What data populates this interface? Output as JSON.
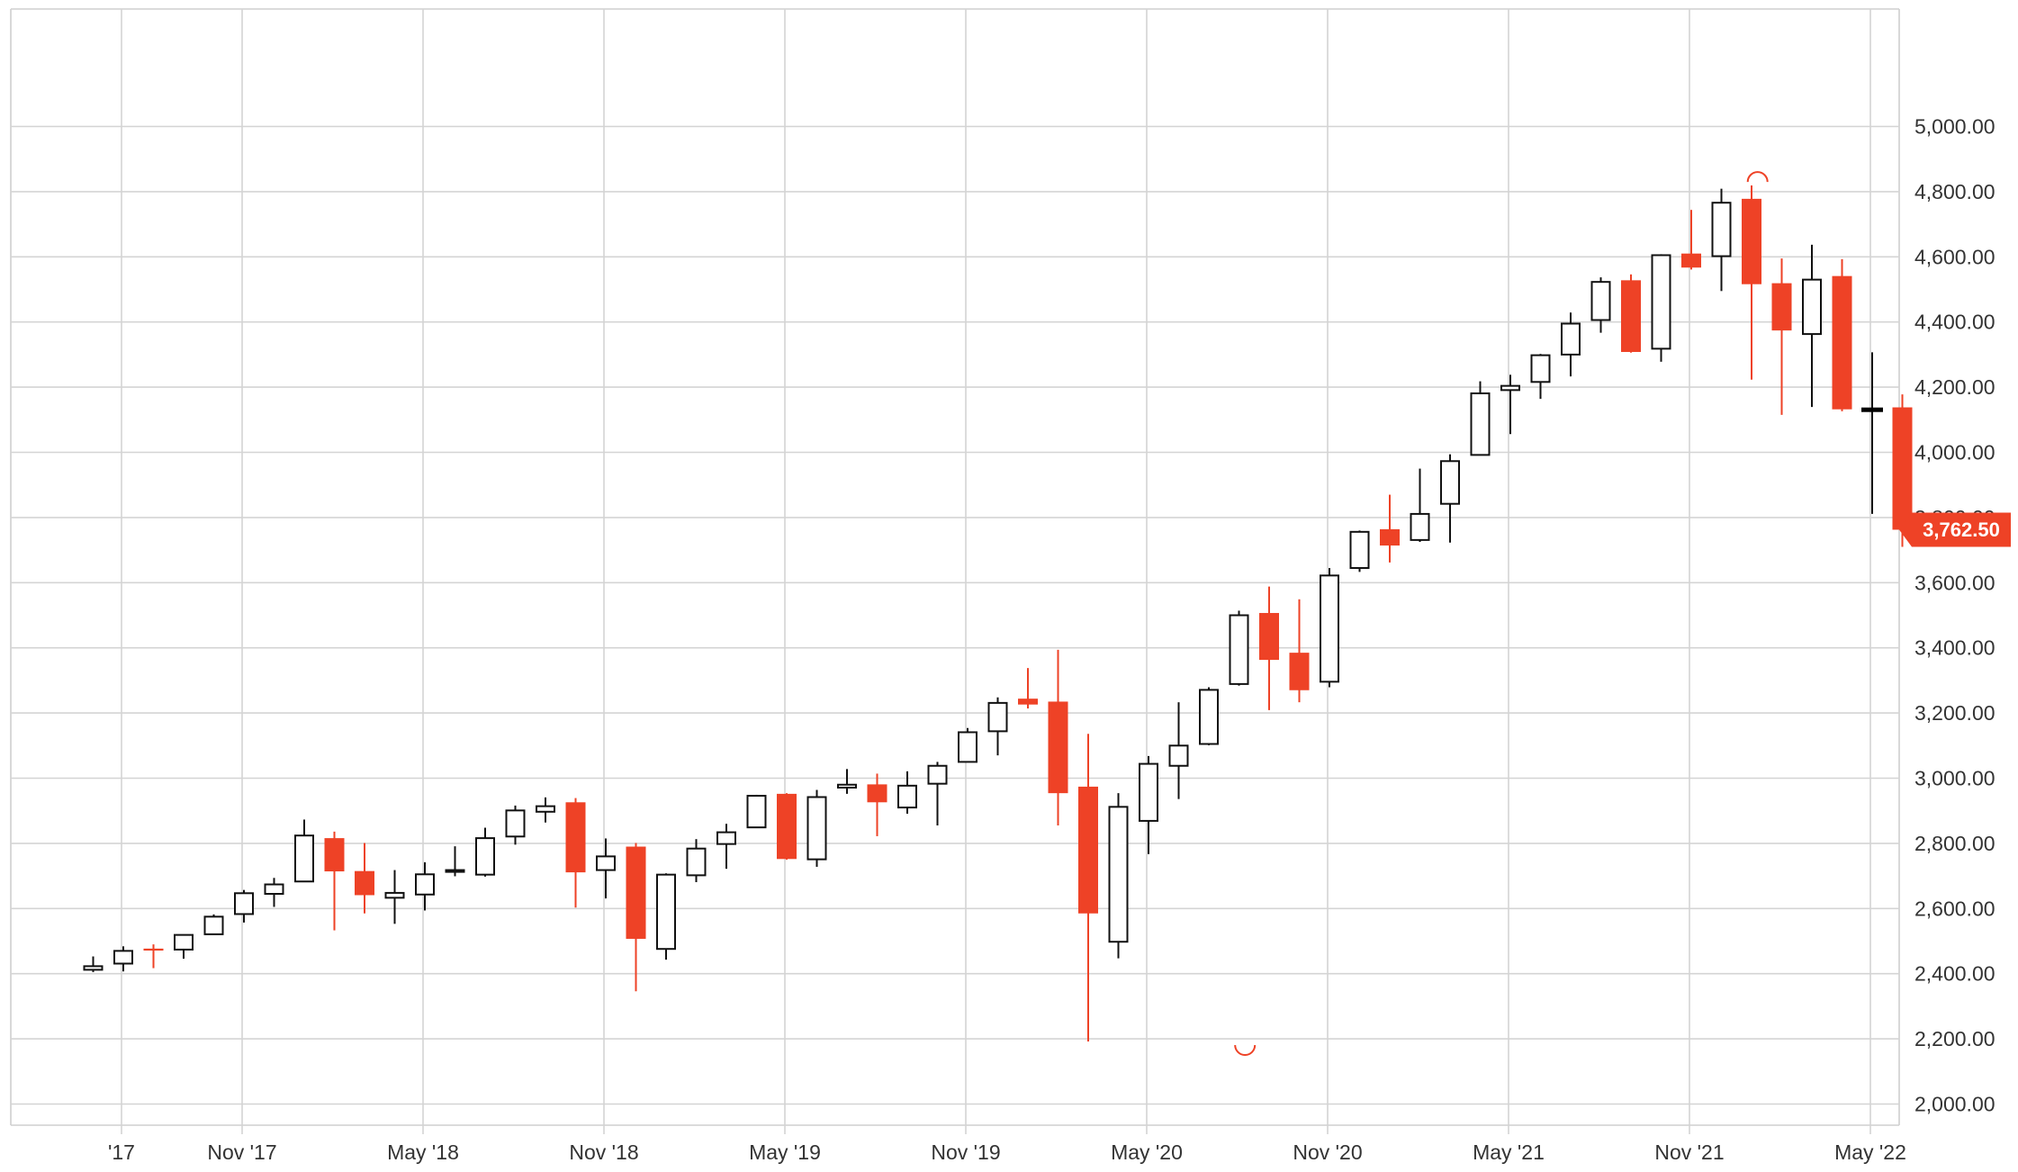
{
  "colors": {
    "up_body": "#ffffff",
    "up_stroke": "#111111",
    "down_fill": "#ee4226",
    "grid": "#d4d4d4",
    "price_marker": "#ee4226",
    "current_bar": "#000000"
  },
  "chart_data": {
    "type": "candlestick",
    "timeframe": "monthly",
    "title": "",
    "xlabel": "",
    "ylabel": "",
    "ylim": [
      1950,
      5080
    ],
    "yticks": [
      2000,
      2200,
      2400,
      2600,
      2800,
      3000,
      3200,
      3400,
      3600,
      3800,
      4000,
      4200,
      4400,
      4600,
      4800,
      5000
    ],
    "ytick_labels": [
      "2,000.00",
      "2,200.00",
      "2,400.00",
      "2,600.00",
      "2,800.00",
      "3,000.00",
      "3,200.00",
      "3,400.00",
      "3,600.00",
      "3,800.00",
      "4,000.00",
      "4,200.00",
      "4,400.00",
      "4,600.00",
      "4,800.00",
      "5,000.00"
    ],
    "xtick_labels": [
      "'17",
      "Nov '17",
      "May '18",
      "Nov '18",
      "May '19",
      "Nov '19",
      "May '20",
      "Nov '20",
      "May '21",
      "Nov '21",
      "May '22"
    ],
    "xtick_month_index": [
      6,
      10,
      16,
      22,
      28,
      34,
      40,
      46,
      52,
      58,
      64
    ],
    "first_month_index": 5,
    "last_price": 3762.5,
    "last_price_label": "3,762.50",
    "extreme_markers": [
      {
        "month_index": 43.2,
        "value": 2191.86,
        "position": "below"
      },
      {
        "month_index": 60.2,
        "value": 4818.62,
        "position": "above"
      }
    ],
    "candles": [
      {
        "month": "Jun 2017",
        "o": 2412,
        "h": 2453,
        "l": 2405,
        "c": 2423
      },
      {
        "month": "Jul 2017",
        "o": 2431,
        "h": 2484,
        "l": 2407,
        "c": 2470
      },
      {
        "month": "Aug 2017",
        "o": 2477,
        "h": 2490,
        "l": 2417,
        "c": 2471
      },
      {
        "month": "Sep 2017",
        "o": 2474,
        "h": 2519,
        "l": 2446,
        "c": 2519
      },
      {
        "month": "Oct 2017",
        "o": 2521,
        "h": 2582,
        "l": 2520,
        "c": 2575
      },
      {
        "month": "Nov 2017",
        "o": 2583,
        "h": 2657,
        "l": 2557,
        "c": 2647
      },
      {
        "month": "Dec 2017",
        "o": 2645,
        "h": 2694,
        "l": 2605,
        "c": 2674
      },
      {
        "month": "Jan 2018",
        "o": 2683,
        "h": 2873,
        "l": 2683,
        "c": 2824
      },
      {
        "month": "Feb 2018",
        "o": 2816,
        "h": 2836,
        "l": 2533,
        "c": 2714
      },
      {
        "month": "Mar 2018",
        "o": 2715,
        "h": 2801,
        "l": 2585,
        "c": 2641
      },
      {
        "month": "Apr 2018",
        "o": 2633,
        "h": 2718,
        "l": 2553,
        "c": 2648
      },
      {
        "month": "May 2018",
        "o": 2643,
        "h": 2742,
        "l": 2594,
        "c": 2705
      },
      {
        "month": "Jun 2018",
        "o": 2718,
        "h": 2791,
        "l": 2699,
        "c": 2718
      },
      {
        "month": "Jul 2018",
        "o": 2704,
        "h": 2848,
        "l": 2698,
        "c": 2816
      },
      {
        "month": "Aug 2018",
        "o": 2821,
        "h": 2916,
        "l": 2796,
        "c": 2901
      },
      {
        "month": "Sep 2018",
        "o": 2897,
        "h": 2941,
        "l": 2864,
        "c": 2914
      },
      {
        "month": "Oct 2018",
        "o": 2926,
        "h": 2939,
        "l": 2603,
        "c": 2711
      },
      {
        "month": "Nov 2018",
        "o": 2718,
        "h": 2815,
        "l": 2631,
        "c": 2760
      },
      {
        "month": "Dec 2018",
        "o": 2790,
        "h": 2801,
        "l": 2346,
        "c": 2507
      },
      {
        "month": "Jan 2019",
        "o": 2476,
        "h": 2708,
        "l": 2443,
        "c": 2704
      },
      {
        "month": "Feb 2019",
        "o": 2702,
        "h": 2813,
        "l": 2681,
        "c": 2784
      },
      {
        "month": "Mar 2019",
        "o": 2798,
        "h": 2860,
        "l": 2722,
        "c": 2834
      },
      {
        "month": "Apr 2019",
        "o": 2849,
        "h": 2949,
        "l": 2848,
        "c": 2946
      },
      {
        "month": "May 2019",
        "o": 2952,
        "h": 2954,
        "l": 2750,
        "c": 2752
      },
      {
        "month": "Jun 2019",
        "o": 2751,
        "h": 2964,
        "l": 2728,
        "c": 2942
      },
      {
        "month": "Jul 2019",
        "o": 2971,
        "h": 3028,
        "l": 2952,
        "c": 2980
      },
      {
        "month": "Aug 2019",
        "o": 2981,
        "h": 3014,
        "l": 2822,
        "c": 2926
      },
      {
        "month": "Sep 2019",
        "o": 2910,
        "h": 3021,
        "l": 2891,
        "c": 2977
      },
      {
        "month": "Oct 2019",
        "o": 2983,
        "h": 3050,
        "l": 2855,
        "c": 3038
      },
      {
        "month": "Nov 2019",
        "o": 3050,
        "h": 3154,
        "l": 3050,
        "c": 3141
      },
      {
        "month": "Dec 2019",
        "o": 3144,
        "h": 3248,
        "l": 3070,
        "c": 3231
      },
      {
        "month": "Jan 2020",
        "o": 3244,
        "h": 3338,
        "l": 3214,
        "c": 3226
      },
      {
        "month": "Feb 2020",
        "o": 3235,
        "h": 3394,
        "l": 2855,
        "c": 2954
      },
      {
        "month": "Mar 2020",
        "o": 2974,
        "h": 3136,
        "l": 2192,
        "c": 2585
      },
      {
        "month": "Apr 2020",
        "o": 2498,
        "h": 2954,
        "l": 2447,
        "c": 2912
      },
      {
        "month": "May 2020",
        "o": 2869,
        "h": 3068,
        "l": 2767,
        "c": 3044
      },
      {
        "month": "Jun 2020",
        "o": 3038,
        "h": 3233,
        "l": 2936,
        "c": 3100
      },
      {
        "month": "Jul 2020",
        "o": 3105,
        "h": 3279,
        "l": 3101,
        "c": 3271
      },
      {
        "month": "Aug 2020",
        "o": 3289,
        "h": 3514,
        "l": 3284,
        "c": 3500
      },
      {
        "month": "Sep 2020",
        "o": 3507,
        "h": 3588,
        "l": 3209,
        "c": 3363
      },
      {
        "month": "Oct 2020",
        "o": 3385,
        "h": 3549,
        "l": 3233,
        "c": 3270
      },
      {
        "month": "Nov 2020",
        "o": 3296,
        "h": 3645,
        "l": 3279,
        "c": 3622
      },
      {
        "month": "Dec 2020",
        "o": 3645,
        "h": 3760,
        "l": 3633,
        "c": 3756
      },
      {
        "month": "Jan 2021",
        "o": 3764,
        "h": 3870,
        "l": 3662,
        "c": 3714
      },
      {
        "month": "Feb 2021",
        "o": 3731,
        "h": 3950,
        "l": 3725,
        "c": 3811
      },
      {
        "month": "Mar 2021",
        "o": 3842,
        "h": 3994,
        "l": 3723,
        "c": 3973
      },
      {
        "month": "Apr 2021",
        "o": 3992,
        "h": 4218,
        "l": 3992,
        "c": 4181
      },
      {
        "month": "May 2021",
        "o": 4191,
        "h": 4238,
        "l": 4056,
        "c": 4204
      },
      {
        "month": "Jun 2021",
        "o": 4216,
        "h": 4302,
        "l": 4164,
        "c": 4298
      },
      {
        "month": "Jul 2021",
        "o": 4300,
        "h": 4429,
        "l": 4233,
        "c": 4395
      },
      {
        "month": "Aug 2021",
        "o": 4406,
        "h": 4537,
        "l": 4367,
        "c": 4523
      },
      {
        "month": "Sep 2021",
        "o": 4528,
        "h": 4546,
        "l": 4306,
        "c": 4308
      },
      {
        "month": "Oct 2021",
        "o": 4318,
        "h": 4608,
        "l": 4278,
        "c": 4605
      },
      {
        "month": "Nov 2021",
        "o": 4610,
        "h": 4744,
        "l": 4561,
        "c": 4567
      },
      {
        "month": "Dec 2021",
        "o": 4602,
        "h": 4809,
        "l": 4495,
        "c": 4766
      },
      {
        "month": "Jan 2022",
        "o": 4778,
        "h": 4819,
        "l": 4223,
        "c": 4516
      },
      {
        "month": "Feb 2022",
        "o": 4519,
        "h": 4595,
        "l": 4115,
        "c": 4374
      },
      {
        "month": "Mar 2022",
        "o": 4363,
        "h": 4637,
        "l": 4139,
        "c": 4530
      },
      {
        "month": "Apr 2022",
        "o": 4541,
        "h": 4593,
        "l": 4126,
        "c": 4132
      },
      {
        "month": "May 2022",
        "o": 4130,
        "h": 4307,
        "l": 3811,
        "c": 4132
      },
      {
        "month": "Jun 2022",
        "o": 4138,
        "h": 4178,
        "l": 3710,
        "c": 3762.5
      }
    ]
  }
}
